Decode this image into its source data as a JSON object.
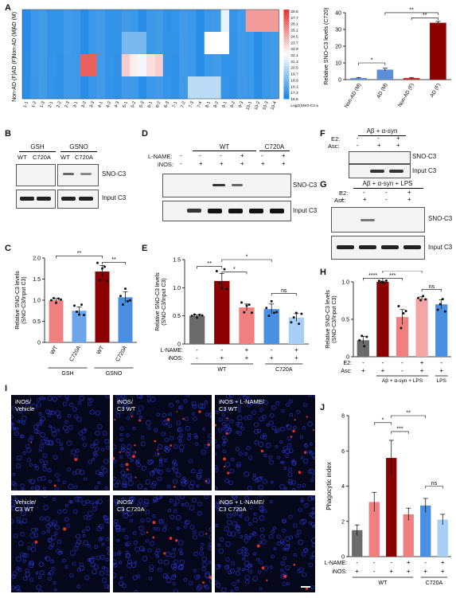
{
  "panels": [
    "A",
    "B",
    "C",
    "D",
    "E",
    "F",
    "G",
    "H",
    "I",
    "J"
  ],
  "heatmap": {
    "rows": [
      "AD (M)",
      "Non-AD (M)",
      "AD (F)",
      "Non-AD (F)"
    ],
    "columns": [
      "1-1",
      "1-2",
      "1-3",
      "2-1",
      "2-2",
      "2-3",
      "3-1",
      "3-2",
      "3-3",
      "4-1",
      "4-2",
      "4-3",
      "5-1",
      "5-2",
      "5-3",
      "6-1",
      "6-2",
      "6-3",
      "7-1",
      "7-2",
      "7-3",
      "7-4",
      "8-1",
      "8-2",
      "9-1",
      "9-2",
      "9-3",
      "10-1",
      "10-2",
      "10-3",
      "10-4"
    ],
    "scale_title": "Log2(SNO-C3 abundance)",
    "scale_ticks": [
      "29.5",
      "27.7",
      "26.1",
      "25.1",
      "24.5",
      "23.7",
      "22.9",
      "22.1",
      "21.3",
      "20.5",
      "19.7",
      "18.9",
      "18.1",
      "17.3",
      "16.5"
    ],
    "colors": {
      "low": "#1e88e5",
      "mid": "#ffffff",
      "high": "#e53935"
    }
  },
  "panel_a_bar": {
    "ylabel": "Relative SNO-C3 levels (C720)",
    "ylim": [
      0,
      40
    ],
    "yticks": [
      "0",
      "10",
      "20",
      "30",
      "40"
    ],
    "categories": [
      "Non-AD (M)",
      "AD (M)",
      "Non-AD (F)",
      "AD (F)"
    ],
    "values": [
      1,
      6,
      1,
      34
    ],
    "errors": [
      0.3,
      0.8,
      0.3,
      0.8
    ],
    "colors": [
      "#5b8fd6",
      "#5b8fd6",
      "#c62828",
      "#8b0000"
    ],
    "sig": [
      "*",
      "**",
      "**"
    ]
  },
  "panel_b": {
    "groups": [
      "GSH",
      "GSNO"
    ],
    "lanes": [
      "WT",
      "C720A",
      "WT",
      "C720A"
    ],
    "bands": [
      "SNO-C3",
      "Input C3"
    ]
  },
  "panel_c": {
    "ylabel": "Relative SNO-C3 levels (SNO-C3/Input C3)",
    "ylim": [
      0,
      2.0
    ],
    "yticks": [
      "0",
      "0.5",
      "1.0",
      "1.5",
      "2.0"
    ],
    "categories": [
      "WT",
      "C720A",
      "WT",
      "C720A"
    ],
    "groups": [
      "GSH",
      "GSNO"
    ],
    "values": [
      1.0,
      0.75,
      1.68,
      1.07
    ],
    "errors": [
      0.04,
      0.09,
      0.14,
      0.13
    ],
    "colors": [
      "#f08080",
      "#6aa6ec",
      "#8b0000",
      "#4a90e2"
    ],
    "sig": [
      "**",
      "**"
    ]
  },
  "panel_d": {
    "rows": [
      "L-NAME:",
      "iNOS:"
    ],
    "groups": [
      "WT",
      "C720A"
    ],
    "l_name": [
      "-",
      "-",
      "-",
      "+",
      "-",
      "+"
    ],
    "inos": [
      "-",
      "+",
      "+",
      "+",
      "+",
      "+"
    ],
    "bands": [
      "SNO-C3",
      "Input C3"
    ]
  },
  "panel_e": {
    "ylabel": "Relative SNO-C3 levels (SNO-C3/Input C3)",
    "ylim": [
      0,
      1.5
    ],
    "yticks": [
      "0",
      "0.5",
      "1.0",
      "1.5"
    ],
    "l_name": [
      "-",
      "-",
      "+",
      "-",
      "+"
    ],
    "inos": [
      "-",
      "+",
      "+",
      "+",
      "+"
    ],
    "groups": [
      "WT",
      "C720A"
    ],
    "values": [
      0.5,
      1.12,
      0.65,
      0.62,
      0.47
    ],
    "errors": [
      0.02,
      0.13,
      0.06,
      0.09,
      0.07
    ],
    "colors": [
      "#6b6b6b",
      "#8b0000",
      "#f08080",
      "#4a90e2",
      "#a8cff5"
    ],
    "sig": [
      "**",
      "*",
      "*",
      "ns"
    ]
  },
  "panel_f": {
    "title": "Aβ + α-syn",
    "rows": [
      "E2:",
      "Asc:"
    ],
    "e2": [
      "-",
      "-",
      "+"
    ],
    "asc": [
      "-",
      "+",
      "+"
    ],
    "bands": [
      "SNO-C3",
      "Input C3"
    ]
  },
  "panel_g": {
    "title": "Aβ + α-syn + LPS",
    "rows": [
      "E2:",
      "Asc:"
    ],
    "e2": [
      "-",
      "-",
      "-",
      "+"
    ],
    "asc": [
      "+",
      "+",
      "-",
      "+"
    ],
    "bands": [
      "SNO-C3",
      "Input C3"
    ]
  },
  "panel_h": {
    "ylabel": "Relative SNO-C3 levels (SNO-C3/Input C3)",
    "ylim": [
      0,
      1.0
    ],
    "yticks": [
      "0",
      "0.5",
      "1.0"
    ],
    "e2": [
      "-",
      "-",
      "-",
      "+",
      "-"
    ],
    "asc": [
      "+",
      "+",
      "-",
      "+",
      "+"
    ],
    "groups": [
      "Aβ + α-syn + LPS",
      "LPS"
    ],
    "values": [
      0.22,
      1.0,
      0.53,
      0.78,
      0.7
    ],
    "errors": [
      0.05,
      0.01,
      0.1,
      0.02,
      0.06
    ],
    "colors": [
      "#6b6b6b",
      "#8b0000",
      "#f08080",
      "#f4a6a6",
      "#4a90e2"
    ],
    "sig": [
      "****",
      "***",
      "*",
      "ns"
    ]
  },
  "panel_i": {
    "tiles": [
      "iNOS/\nVehicle",
      "iNOS/\nC3 WT",
      "iNOS + L-NAME/\nC3 WT",
      "Vehicle/\nC3 WT",
      "iNOS/\nC3 C720A",
      "iNOS + L-NAME/\nC3 C720A"
    ]
  },
  "panel_j": {
    "ylabel": "Phagocytic index",
    "ylim": [
      0,
      8
    ],
    "yticks": [
      "0",
      "2",
      "4",
      "6",
      "8"
    ],
    "l_name": [
      "-",
      "-",
      "-",
      "+",
      "-",
      "+"
    ],
    "inos": [
      "+",
      "-",
      "+",
      "+",
      "+",
      "+"
    ],
    "groups": [
      "WT",
      "C720A"
    ],
    "values": [
      1.5,
      3.1,
      5.6,
      2.4,
      2.9,
      2.1
    ],
    "errors": [
      0.3,
      0.55,
      1.0,
      0.35,
      0.4,
      0.3
    ],
    "colors": [
      "#6b6b6b",
      "#f08080",
      "#8b0000",
      "#f08080",
      "#4a90e2",
      "#a8cff5"
    ],
    "sig": [
      "*",
      "***",
      "**",
      "ns"
    ]
  }
}
